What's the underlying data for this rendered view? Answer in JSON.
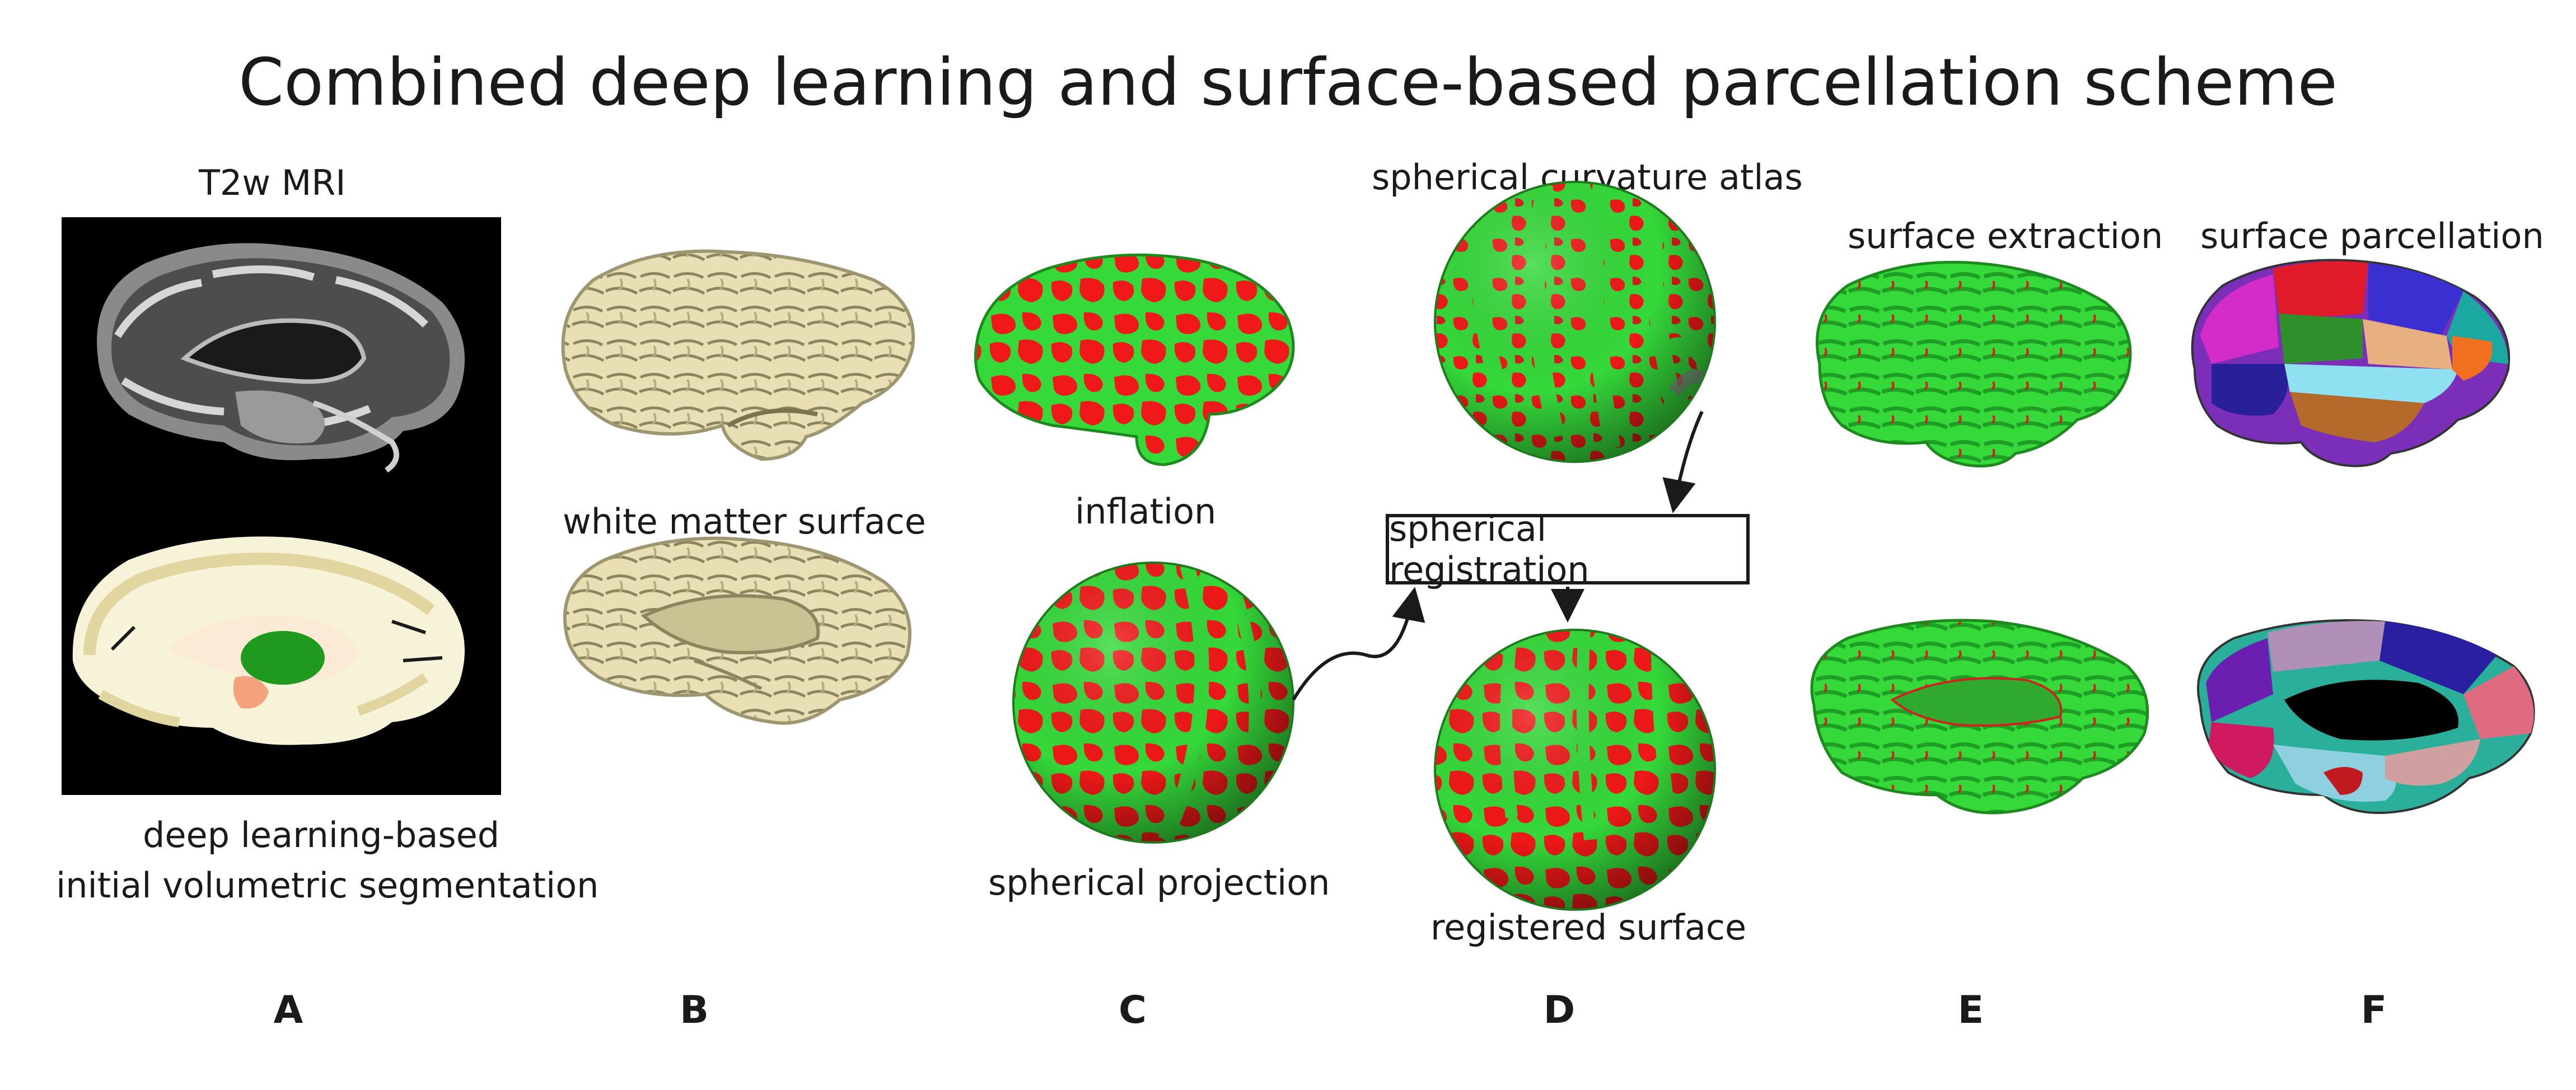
{
  "title": "Combined deep learning and surface-based parcellation scheme",
  "labels": {
    "t2w_mri": "T2w MRI",
    "deep_learning_line1": "deep learning-based",
    "deep_learning_line2": "initial volumetric segmentation",
    "white_matter_surface": "white matter surface",
    "inflation": "inflation",
    "spherical_projection": "spherical projection",
    "spherical_curvature_atlas": "spherical curvature atlas",
    "spherical_registration": "spherical registration",
    "registered_surface": "registered surface",
    "surface_extraction": "surface extraction",
    "surface_parcellation": "surface parcellation"
  },
  "panels": [
    "A",
    "B",
    "C",
    "D",
    "E",
    "F"
  ],
  "colors": {
    "curvature_green": "#35d93a",
    "curvature_red": "#f01818",
    "white_matter": "#e8e0b4",
    "mri_background": "#000000",
    "segmentation_ivory": "#f7f3d8",
    "segmentation_green": "#1f9a1f",
    "segmentation_salmon": "#f3a27c"
  }
}
